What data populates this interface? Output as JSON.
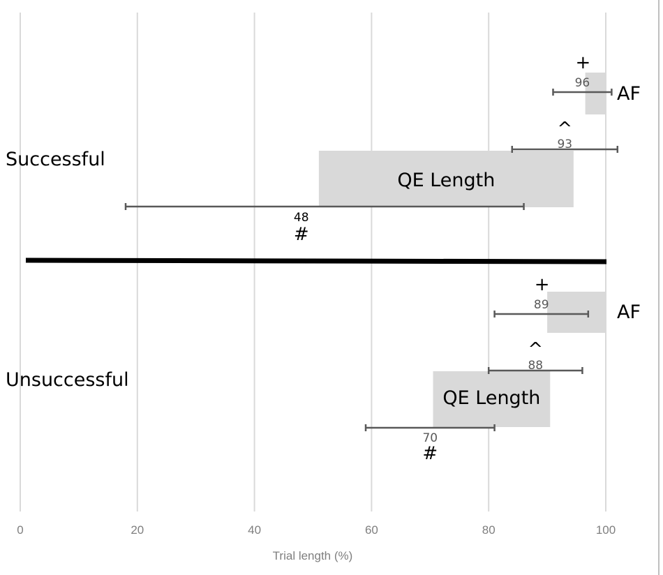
{
  "chart_data": {
    "type": "bar",
    "orientation": "horizontal",
    "xlabel": "Trial length (%)",
    "xlim": [
      0,
      100
    ],
    "x_ticks": [
      "0",
      "20",
      "40",
      "60",
      "80",
      "100"
    ],
    "grid": true,
    "groups": [
      {
        "label": "Successful",
        "af": {
          "label": "AF",
          "start": 96.5,
          "end": 100,
          "mean": 96,
          "mean_label": "96",
          "error": [
            91,
            101
          ],
          "symbol": "+"
        },
        "qe": {
          "label": "QE Length",
          "start": 51,
          "end": 94.5,
          "mean_onset": 93,
          "onset_label": "93",
          "onset_error": [
            84,
            102
          ],
          "onset_symbol": "^",
          "mean_duration": 48,
          "duration_label": "48",
          "duration_error": [
            18,
            86
          ],
          "duration_symbol": "#"
        }
      },
      {
        "label": "Unsuccessful",
        "af": {
          "label": "AF",
          "start": 90,
          "end": 100,
          "mean": 89,
          "mean_label": "89",
          "error": [
            81,
            97
          ],
          "symbol": "+"
        },
        "qe": {
          "label": "QE Length",
          "start": 70.5,
          "end": 90.5,
          "mean_onset": 88,
          "onset_label": "88",
          "onset_error": [
            80,
            96
          ],
          "onset_symbol": "^",
          "mean_duration": 70,
          "duration_label": "70",
          "duration_error": [
            59,
            81
          ],
          "duration_symbol": "#"
        }
      }
    ]
  }
}
